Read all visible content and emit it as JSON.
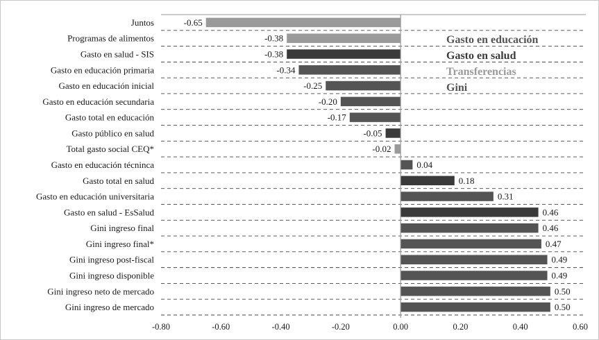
{
  "colors": {
    "education": "#545454",
    "health": "#3a3a3a",
    "transfers": "#9a9a9a",
    "gini": "#545454",
    "background": "#ffffff",
    "grid": "#444444",
    "axis": "#9a9a9a"
  },
  "chart_data": {
    "type": "bar",
    "orientation": "horizontal",
    "categories": [
      "Juntos",
      "Programas de alimentos",
      "Gasto en salud - SIS",
      "Gasto en educación primaria",
      "Gasto en educación inicial",
      "Gasto en educación secundaria",
      "Gasto total en educación",
      "Gasto público en salud",
      "Total gasto social CEQ*",
      "Gasto en educación técninca",
      "Gasto total en salud",
      "Gasto en educación universitaria",
      "Gasto en salud - EsSalud",
      "Gini ingreso final",
      "Gini ingreso final*",
      "Gini ingreso post-fiscal",
      "Gini ingreso disponible",
      "Gini ingreso neto de mercado",
      "Gini ingreso de mercado"
    ],
    "values": [
      -0.65,
      -0.38,
      -0.38,
      -0.34,
      -0.25,
      -0.2,
      -0.17,
      -0.05,
      -0.02,
      0.04,
      0.18,
      0.31,
      0.46,
      0.46,
      0.47,
      0.49,
      0.49,
      0.5,
      0.5
    ],
    "value_labels": [
      "-0.65",
      "-0.38",
      "-0.38",
      "-0.34",
      "-0.25",
      "-0.20",
      "-0.17",
      "-0.05",
      "-0.02",
      "0.04",
      "0.18",
      "0.31",
      "0.46",
      "0.46",
      "0.47",
      "0.49",
      "0.49",
      "0.50",
      "0.50"
    ],
    "groups": [
      "transfers",
      "transfers",
      "health",
      "education",
      "education",
      "education",
      "education",
      "health",
      "transfers",
      "education",
      "health",
      "education",
      "health",
      "gini",
      "gini",
      "gini",
      "gini",
      "gini",
      "gini"
    ],
    "legend": [
      {
        "key": "education",
        "label": "Gasto en educación"
      },
      {
        "key": "health",
        "label": "Gasto en salud"
      },
      {
        "key": "transfers",
        "label": "Transferencias"
      },
      {
        "key": "gini",
        "label": "Gini"
      }
    ],
    "legend_position": "top-right",
    "xlim": [
      -0.8,
      0.6
    ],
    "xticks": [
      -0.8,
      -0.6,
      -0.4,
      -0.2,
      0.0,
      0.2,
      0.4,
      0.6
    ],
    "xtick_labels": [
      "-0.80",
      "-0.60",
      "-0.40",
      "-0.20",
      "0.00",
      "0.20",
      "0.40",
      "0.60"
    ],
    "grid": "horizontal dashed",
    "title": "",
    "xlabel": "",
    "ylabel": ""
  }
}
